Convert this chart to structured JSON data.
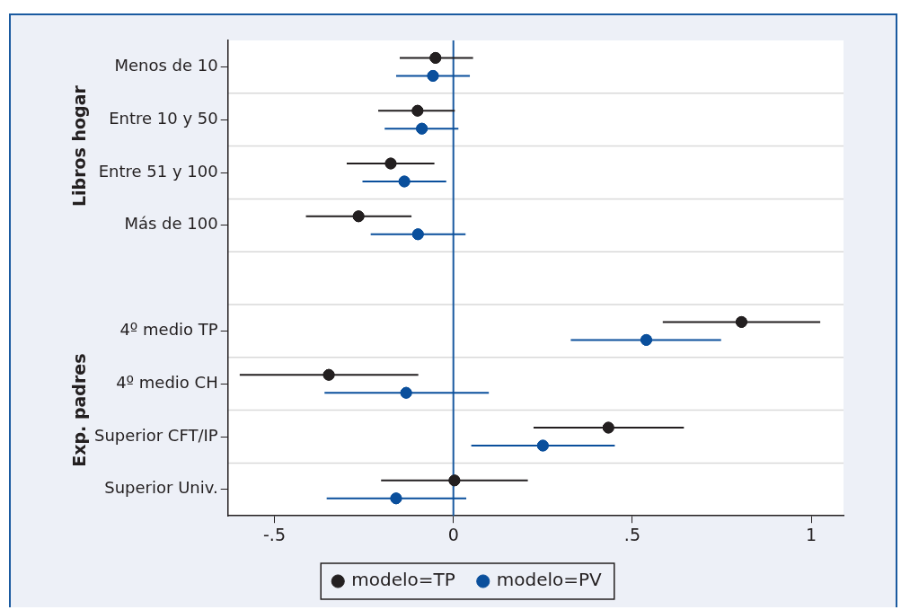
{
  "chart_data": {
    "type": "scatter",
    "orientation": "horizontal",
    "categories": [
      "Menos de 10",
      "Entre 10 y 50",
      "Entre 51 y 100",
      "Más de 100",
      null,
      "4º medio TP",
      "4º medio CH",
      "Superior CFT/IP",
      "Superior Univ."
    ],
    "series": [
      {
        "name": "modelo=TP",
        "color": "#231f20",
        "values": [
          -0.05,
          -0.1,
          -0.175,
          -0.265,
          null,
          0.805,
          -0.348,
          0.433,
          0.003
        ],
        "errors": [
          [
            -0.15,
            0.055
          ],
          [
            -0.21,
            0.004
          ],
          [
            -0.298,
            -0.053
          ],
          [
            -0.412,
            -0.117
          ],
          null,
          [
            0.585,
            1.025
          ],
          [
            -0.597,
            -0.098
          ],
          [
            0.224,
            0.644
          ],
          [
            -0.202,
            0.208
          ]
        ]
      },
      {
        "name": "modelo=PV",
        "color": "#0a4f9c",
        "values": [
          -0.057,
          -0.088,
          -0.137,
          -0.099,
          null,
          0.539,
          -0.132,
          0.25,
          -0.16
        ],
        "errors": [
          [
            -0.16,
            0.046
          ],
          [
            -0.192,
            0.014
          ],
          [
            -0.254,
            -0.02
          ],
          [
            -0.231,
            0.034
          ],
          null,
          [
            0.328,
            0.748
          ],
          [
            -0.36,
            0.099
          ],
          [
            0.05,
            0.451
          ],
          [
            -0.354,
            0.036
          ]
        ]
      }
    ],
    "xlim": [
      -0.63,
      1.09
    ],
    "xticks": [
      {
        "value": -0.5,
        "label": "-.5"
      },
      0,
      {
        "value": 0.5,
        "label": ".5"
      },
      1
    ],
    "ref_lines": [
      {
        "axis": "x",
        "value": 0,
        "color": "#1a5aa0"
      }
    ],
    "annotations": [
      "Libros hogar",
      "Exp. padres"
    ],
    "grid": "y",
    "legend": "bottom",
    "marker": "circle"
  }
}
